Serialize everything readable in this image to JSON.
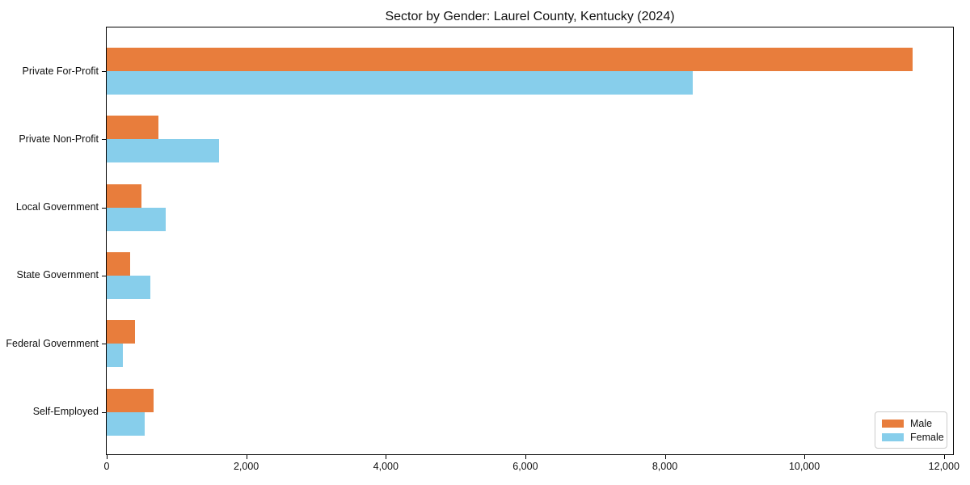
{
  "title": "Sector by Gender: Laurel County, Kentucky (2024)",
  "chart_data": {
    "type": "bar",
    "orientation": "horizontal",
    "title": "Sector by Gender: Laurel County, Kentucky (2024)",
    "categories": [
      "Private For-Profit",
      "Private Non-Profit",
      "Local Government",
      "State Government",
      "Federal Government",
      "Self-Employed"
    ],
    "series": [
      {
        "name": "Male",
        "color": "#e87d3c",
        "values": [
          11550,
          740,
          500,
          340,
          410,
          670
        ]
      },
      {
        "name": "Female",
        "color": "#87ceeb",
        "values": [
          8400,
          1610,
          850,
          630,
          230,
          540
        ]
      }
    ],
    "xlabel": "",
    "ylabel": "",
    "xlim": [
      0,
      12130
    ],
    "xticks": [
      0,
      2000,
      4000,
      6000,
      8000,
      10000,
      12000
    ],
    "xtick_labels": [
      "0",
      "2,000",
      "4,000",
      "6,000",
      "8,000",
      "10,000",
      "12,000"
    ],
    "grid": false,
    "legend_position": "lower right"
  }
}
